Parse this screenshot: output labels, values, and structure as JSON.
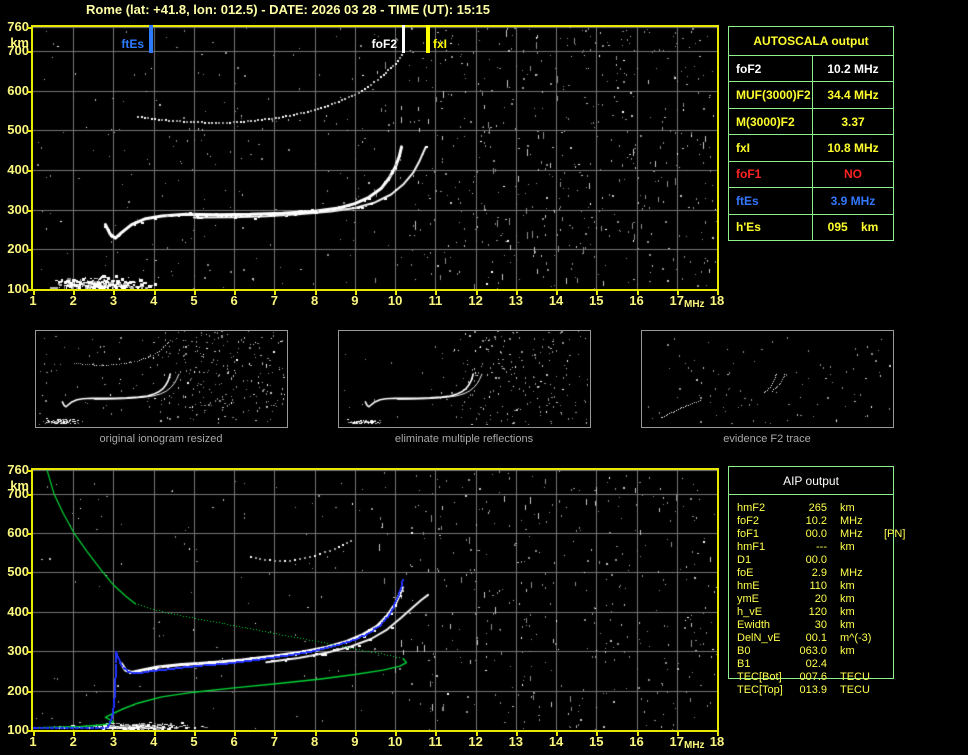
{
  "title": "Rome (lat: +41.8, lon: 012.5) - DATE: 2026 03 28 - TIME (UT): 15:15",
  "colors": {
    "background": "#000000",
    "title_text": "#ffffa6",
    "axis_text": "#fbf77e",
    "plot_border": "#e9e900",
    "grid_line": "#757575",
    "table_border": "#8df18d",
    "yellow_value": "#ffff2e",
    "white_value": "#ffffff",
    "red_value": "#ff2222",
    "blue_value": "#3377ff",
    "profile_green": "#00d435",
    "trace_blue": "#2233ff",
    "noise_gray": "#8d8d8d"
  },
  "autoscala_table": {
    "header": "AUTOSCALA output",
    "rows": [
      {
        "label": "foF2",
        "value": "10.2",
        "unit": "MHz",
        "color": "white"
      },
      {
        "label": "MUF(3000)F2",
        "value": "34.4",
        "unit": "MHz",
        "color": "yellow"
      },
      {
        "label": "M(3000)F2",
        "value": "3.37",
        "unit": "",
        "color": "yellow"
      },
      {
        "label": "fxI",
        "value": "10.8",
        "unit": "MHz",
        "color": "yellow"
      },
      {
        "label": "foF1",
        "value": "NO",
        "unit": "",
        "color": "red"
      },
      {
        "label": "ftEs",
        "value": "3.9",
        "unit": "MHz",
        "color": "blue"
      },
      {
        "label": "h'Es",
        "value": "095",
        "unit": "km",
        "color": "yellow",
        "wide_gap": true
      }
    ]
  },
  "aip_table": {
    "header": "AIP output",
    "rows": [
      {
        "label": "hmF2",
        "value": "265",
        "unit": "km",
        "extra": ""
      },
      {
        "label": "foF2",
        "value": "10.2",
        "unit": "MHz",
        "extra": ""
      },
      {
        "label": "foF1",
        "value": "00.0",
        "unit": "MHz",
        "extra": "[PN]"
      },
      {
        "label": "hmF1",
        "value": "---",
        "unit": "km",
        "extra": ""
      },
      {
        "label": "D1",
        "value": "00.0",
        "unit": "",
        "extra": ""
      },
      {
        "label": "foE",
        "value": "2.9",
        "unit": "MHz",
        "extra": ""
      },
      {
        "label": "hmE",
        "value": "110",
        "unit": "km",
        "extra": ""
      },
      {
        "label": "ymE",
        "value": "20",
        "unit": "km",
        "extra": ""
      },
      {
        "label": "h_vE",
        "value": "120",
        "unit": "km",
        "extra": ""
      },
      {
        "label": "Ewidth",
        "value": "30",
        "unit": "km",
        "extra": ""
      },
      {
        "label": "DelN_vE",
        "value": "00.1",
        "unit": "m^(-3)",
        "extra": ""
      },
      {
        "label": "B0",
        "value": "063.0",
        "unit": "km",
        "extra": ""
      },
      {
        "label": "B1",
        "value": "02.4",
        "unit": "",
        "extra": ""
      },
      {
        "label": "TEC[Bot]",
        "value": "007.6",
        "unit": "TECU",
        "extra": ""
      },
      {
        "label": "TEC[Top]",
        "value": "013.9",
        "unit": "TECU",
        "extra": ""
      }
    ]
  },
  "thumbnails": [
    {
      "caption": "original ionogram resized"
    },
    {
      "caption": "eliminate multiple reflections"
    },
    {
      "caption": "evidence F2 trace"
    }
  ],
  "chart_data": [
    {
      "type": "scatter",
      "name": "scaled ionogram with autoscaling markers",
      "xlabel": "MHz",
      "ylabel": "km",
      "xlim": [
        1,
        18
      ],
      "ylim": [
        100,
        760
      ],
      "xticks": [
        1,
        2,
        3,
        4,
        5,
        6,
        7,
        8,
        9,
        10,
        11,
        12,
        13,
        14,
        15,
        16,
        17,
        18
      ],
      "yticks": [
        760,
        700,
        600,
        500,
        400,
        300,
        200,
        100
      ],
      "grid": true,
      "markers": [
        {
          "label": "ftEs",
          "f_mhz": 3.9,
          "color": "#2d7bff",
          "side": "left"
        },
        {
          "label": "foF2",
          "f_mhz": 10.2,
          "color": "#ffffff",
          "side": "left"
        },
        {
          "label": "fxI",
          "f_mhz": 10.8,
          "color": "#ffff00",
          "side": "right"
        }
      ],
      "series": [
        {
          "name": "F2 trace o-mode",
          "color": "#ffffff",
          "style": "solid",
          "points": [
            [
              2.8,
              262
            ],
            [
              2.92,
              238
            ],
            [
              3.05,
              228
            ],
            [
              3.2,
              242
            ],
            [
              3.45,
              262
            ],
            [
              3.8,
              277
            ],
            [
              4.2,
              284
            ],
            [
              4.8,
              288
            ],
            [
              5.6,
              287
            ],
            [
              6.4,
              288
            ],
            [
              7.2,
              291
            ],
            [
              8.0,
              296
            ],
            [
              8.6,
              304
            ],
            [
              9.0,
              315
            ],
            [
              9.35,
              331
            ],
            [
              9.65,
              353
            ],
            [
              9.85,
              379
            ],
            [
              10.0,
              406
            ],
            [
              10.1,
              433
            ],
            [
              10.16,
              458
            ]
          ]
        },
        {
          "name": "F2 trace x-mode",
          "color": "#f2f2f2",
          "style": "solid",
          "points": [
            [
              5.0,
              280
            ],
            [
              6.0,
              281
            ],
            [
              6.8,
              283
            ],
            [
              7.6,
              288
            ],
            [
              8.4,
              295
            ],
            [
              9.0,
              304
            ],
            [
              9.5,
              318
            ],
            [
              9.9,
              338
            ],
            [
              10.2,
              363
            ],
            [
              10.45,
              393
            ],
            [
              10.6,
              421
            ],
            [
              10.7,
              444
            ],
            [
              10.76,
              457
            ]
          ]
        },
        {
          "name": "second hop reflection",
          "color": "#cfcfcf",
          "style": "dotted",
          "points": [
            [
              3.6,
              535
            ],
            [
              4.2,
              527
            ],
            [
              5.0,
              521
            ],
            [
              5.8,
              520
            ],
            [
              6.5,
              525
            ],
            [
              7.2,
              534
            ],
            [
              7.9,
              549
            ],
            [
              8.5,
              569
            ],
            [
              9.0,
              591
            ],
            [
              9.4,
              616
            ],
            [
              9.7,
              641
            ],
            [
              10.0,
              669
            ],
            [
              10.15,
              691
            ]
          ]
        },
        {
          "name": "Es layer echoes",
          "style": "blob-band",
          "region": {
            "f_mhz": [
              1.05,
              4.4
            ],
            "h_km": [
              100,
              130
            ]
          }
        }
      ]
    },
    {
      "type": "scatter",
      "name": "ionogram with AIP restored profile",
      "xlabel": "MHz",
      "ylabel": "km",
      "xlim": [
        1,
        18
      ],
      "ylim": [
        100,
        760
      ],
      "xticks": [
        1,
        2,
        3,
        4,
        5,
        6,
        7,
        8,
        9,
        10,
        11,
        12,
        13,
        14,
        15,
        16,
        17,
        18
      ],
      "yticks": [
        760,
        700,
        600,
        500,
        400,
        300,
        200,
        100
      ],
      "grid": true,
      "series": [
        {
          "name": "F2 trace o-mode",
          "color": "#ffffff",
          "style": "solid",
          "points": [
            [
              3.2,
              268
            ],
            [
              3.3,
              252
            ],
            [
              3.45,
              246
            ],
            [
              3.7,
              252
            ],
            [
              4.1,
              260
            ],
            [
              4.7,
              266
            ],
            [
              5.4,
              271
            ],
            [
              6.2,
              278
            ],
            [
              7.0,
              288
            ],
            [
              7.7,
              298
            ],
            [
              8.3,
              310
            ],
            [
              8.8,
              325
            ],
            [
              9.2,
              342
            ],
            [
              9.55,
              363
            ],
            [
              9.8,
              389
            ],
            [
              10.0,
              419
            ],
            [
              10.12,
              446
            ],
            [
              10.18,
              462
            ]
          ]
        },
        {
          "name": "F2 trace x-mode",
          "color": "#f2f2f2",
          "style": "solid",
          "points": [
            [
              6.8,
              272
            ],
            [
              7.6,
              283
            ],
            [
              8.3,
              296
            ],
            [
              8.9,
              312
            ],
            [
              9.4,
              331
            ],
            [
              9.8,
              355
            ],
            [
              10.15,
              385
            ],
            [
              10.45,
              412
            ],
            [
              10.65,
              430
            ],
            [
              10.82,
              443
            ]
          ]
        },
        {
          "name": "computed trace E region",
          "color": "#2233ff",
          "style": "dotted",
          "points": [
            [
              1.0,
              107
            ],
            [
              2.8,
              107
            ]
          ]
        },
        {
          "name": "computed trace F region",
          "color": "#2233ff",
          "style": "dotted",
          "points": [
            [
              2.85,
              110
            ],
            [
              2.95,
              131
            ],
            [
              3.0,
              165
            ],
            [
              3.03,
              210
            ],
            [
              3.05,
              262
            ],
            [
              3.06,
              300
            ],
            [
              3.1,
              286
            ],
            [
              3.2,
              263
            ],
            [
              3.35,
              249
            ],
            [
              3.55,
              245
            ],
            [
              3.9,
              250
            ],
            [
              4.4,
              256
            ],
            [
              5.0,
              263
            ],
            [
              5.8,
              270
            ],
            [
              6.6,
              280
            ],
            [
              7.3,
              290
            ],
            [
              7.9,
              300
            ],
            [
              8.4,
              312
            ],
            [
              8.9,
              327
            ],
            [
              9.3,
              345
            ],
            [
              9.6,
              365
            ],
            [
              9.8,
              389
            ],
            [
              9.95,
              413
            ],
            [
              10.08,
              443
            ],
            [
              10.15,
              468
            ],
            [
              10.18,
              482
            ]
          ]
        },
        {
          "name": "electron density profile topside",
          "color": "#00d435",
          "style": "solid",
          "points": [
            [
              1.35,
              760
            ],
            [
              1.52,
              700
            ],
            [
              1.75,
              650
            ],
            [
              2.02,
              600
            ],
            [
              2.35,
              552
            ],
            [
              2.68,
              508
            ],
            [
              3.0,
              468
            ],
            [
              3.3,
              440
            ],
            [
              3.55,
              420
            ]
          ]
        },
        {
          "name": "electron density profile near peak",
          "color": "#00d435",
          "style": "dotted",
          "points": [
            [
              3.55,
              420
            ],
            [
              4.3,
              398
            ],
            [
              5.2,
              380
            ],
            [
              6.2,
              361
            ],
            [
              7.2,
              341
            ],
            [
              8.1,
              324
            ],
            [
              8.9,
              308
            ],
            [
              9.5,
              296
            ],
            [
              9.95,
              287
            ],
            [
              10.2,
              281
            ]
          ]
        },
        {
          "name": "electron density profile bottomside",
          "color": "#00d435",
          "style": "solid",
          "points": [
            [
              10.2,
              281
            ],
            [
              10.28,
              271
            ],
            [
              10.12,
              262
            ],
            [
              9.7,
              252
            ],
            [
              9.0,
              241
            ],
            [
              8.1,
              229
            ],
            [
              7.1,
              218
            ],
            [
              6.0,
              207
            ],
            [
              5.0,
              196
            ],
            [
              4.2,
              184
            ],
            [
              3.6,
              168
            ],
            [
              3.2,
              152
            ],
            [
              2.95,
              140
            ],
            [
              2.8,
              132
            ],
            [
              2.92,
              126
            ],
            [
              3.0,
              121
            ],
            [
              2.85,
              115
            ],
            [
              2.6,
              112
            ],
            [
              2.2,
              109
            ],
            [
              1.6,
              107
            ],
            [
              1.0,
              105
            ]
          ]
        },
        {
          "name": "second hop residual",
          "color": "#9d9d9d",
          "style": "dotted",
          "points": [
            [
              6.4,
              540
            ],
            [
              7.0,
              530
            ],
            [
              7.5,
              532
            ],
            [
              8.0,
              544
            ],
            [
              8.5,
              560
            ],
            [
              8.9,
              580
            ]
          ]
        },
        {
          "name": "Es layer echoes",
          "style": "blob-band",
          "region": {
            "f_mhz": [
              1.05,
              5.8
            ],
            "h_km": [
              100,
              114
            ]
          }
        }
      ]
    },
    {
      "type": "scatter",
      "name": "evidence F2 trace fragment",
      "series": [
        {
          "name": "F2 partial trace",
          "color": "#ffffff",
          "style": "dotted",
          "points": [
            [
              2.3,
              150
            ],
            [
              3.0,
              185
            ],
            [
              3.6,
              215
            ],
            [
              4.3,
              245
            ],
            [
              5.0,
              272
            ]
          ]
        }
      ]
    }
  ]
}
